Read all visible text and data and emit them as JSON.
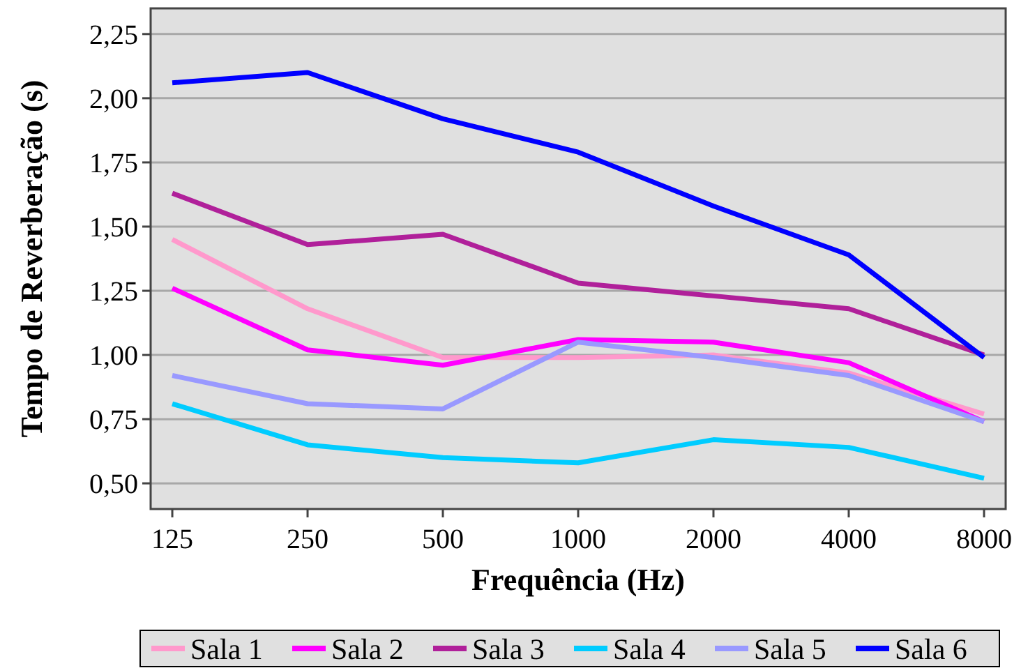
{
  "chart_data": {
    "type": "line",
    "xlabel": "Frequência (Hz)",
    "ylabel": "Tempo de Reverberação (s)",
    "categories": [
      "125",
      "250",
      "500",
      "1000",
      "2000",
      "4000",
      "8000"
    ],
    "ylim": [
      0.4,
      2.35
    ],
    "yticks": [
      {
        "value": 0.5,
        "label": "0,50"
      },
      {
        "value": 0.75,
        "label": "0,75"
      },
      {
        "value": 1,
        "label": "1,00"
      },
      {
        "value": 1.25,
        "label": "1,25"
      },
      {
        "value": 1.5,
        "label": "1,50"
      },
      {
        "value": 1.75,
        "label": "1,75"
      },
      {
        "value": 2,
        "label": "2,00"
      },
      {
        "value": 2.25,
        "label": "2,25"
      }
    ],
    "grid": "y",
    "legend": "bottom",
    "marker": "none",
    "line_style": "solid",
    "series": [
      {
        "name": "Sala 1",
        "color": "#ff99cc",
        "values": [
          1.45,
          1.18,
          0.99,
          0.99,
          1.0,
          0.93,
          0.77
        ]
      },
      {
        "name": "Sala 2",
        "color": "#ff00ff",
        "values": [
          1.26,
          1.02,
          0.96,
          1.06,
          1.05,
          0.97,
          0.74
        ]
      },
      {
        "name": "Sala 3",
        "color": "#b0209a",
        "values": [
          1.63,
          1.43,
          1.47,
          1.28,
          1.23,
          1.18,
          1.0
        ]
      },
      {
        "name": "Sala 4",
        "color": "#00ccff",
        "values": [
          0.81,
          0.65,
          0.6,
          0.58,
          0.67,
          0.64,
          0.52
        ]
      },
      {
        "name": "Sala 5",
        "color": "#9999ff",
        "values": [
          0.92,
          0.81,
          0.79,
          1.05,
          0.99,
          0.92,
          0.74
        ]
      },
      {
        "name": "Sala 6",
        "color": "#0000ff",
        "values": [
          2.06,
          2.1,
          1.92,
          1.79,
          1.58,
          1.39,
          0.99
        ]
      }
    ]
  }
}
